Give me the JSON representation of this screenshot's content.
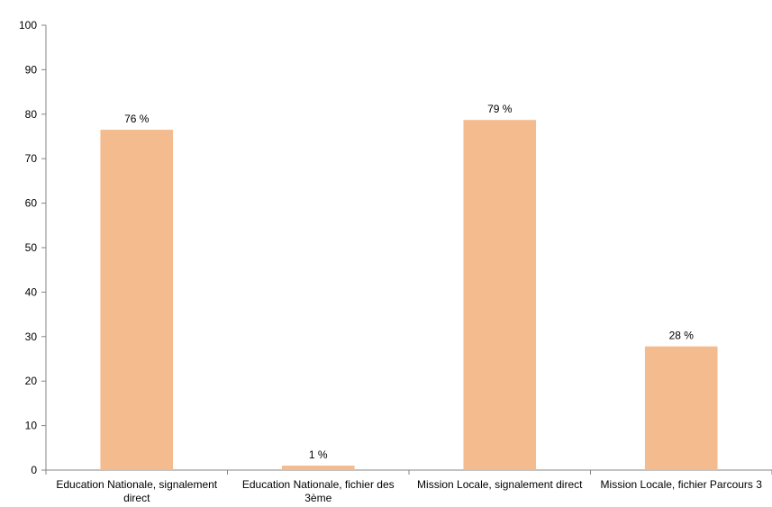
{
  "chart_data": {
    "type": "bar",
    "title": "",
    "xlabel": "",
    "ylabel": "",
    "ylim": [
      0,
      100
    ],
    "yticks": [
      0,
      10,
      20,
      30,
      40,
      50,
      60,
      70,
      80,
      90,
      100
    ],
    "categories": [
      [
        "Education Nationale, signalement",
        "direct"
      ],
      [
        "Education Nationale, fichier des",
        "3ème"
      ],
      [
        "Mission Locale, signalement direct"
      ],
      [
        "Mission Locale, fichier Parcours 3"
      ]
    ],
    "values": [
      76.5,
      1,
      78.7,
      27.8
    ],
    "data_labels": [
      "76 %",
      "1 %",
      "79 %",
      "28 %"
    ],
    "grid": false,
    "legend": "none",
    "colors": {
      "bar": "#F4BB8F",
      "axis": "#868686",
      "text": "#000000",
      "background": "#FFFFFF"
    }
  }
}
